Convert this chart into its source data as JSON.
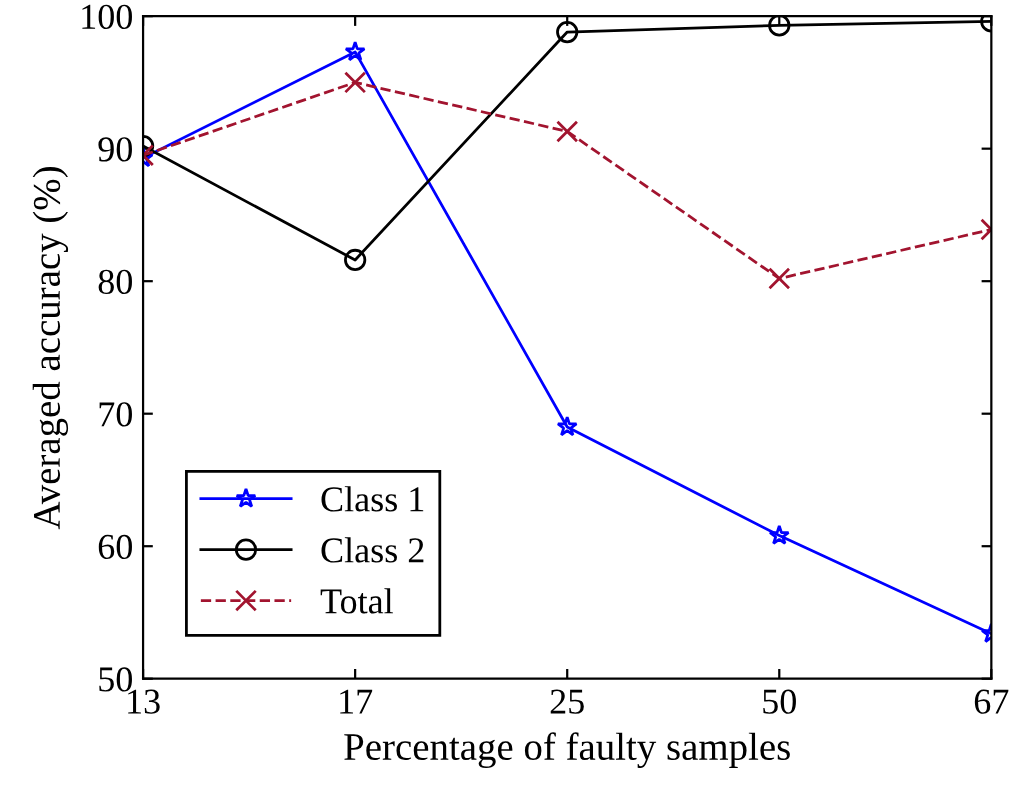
{
  "chart_data": {
    "type": "line",
    "xlabel": "Percentage of faulty samples",
    "ylabel": "Averaged accuracy (%)",
    "categories": [
      "13",
      "17",
      "25",
      "50",
      "67"
    ],
    "ylim": [
      50,
      100
    ],
    "yticks": [
      50,
      60,
      70,
      80,
      90,
      100
    ],
    "grid": false,
    "legend": "bottom left",
    "series": [
      {
        "name": "Class 1",
        "color": "#0000ff",
        "marker": "star",
        "line_style": "solid",
        "values": [
          89.3,
          97.3,
          69.0,
          60.8,
          53.4
        ]
      },
      {
        "name": "Class 2",
        "color": "#000000",
        "marker": "circle",
        "line_style": "solid",
        "values": [
          90.2,
          81.6,
          98.8,
          99.3,
          99.6
        ]
      },
      {
        "name": "Total",
        "color": "#a2142f",
        "marker": "cross",
        "line_style": "dashed",
        "values": [
          89.5,
          95.0,
          91.3,
          80.2,
          83.9
        ]
      }
    ]
  }
}
